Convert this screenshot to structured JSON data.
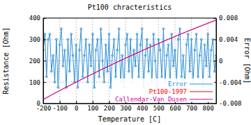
{
  "chart_data": {
    "type": "line",
    "title": "Pt100 chracteristics",
    "x_label": "Temperature [C]",
    "y_label": "Resistance [Ohm]",
    "y2_label": "Error [Ohm]",
    "xlim": [
      -200,
      850
    ],
    "xticks": [
      -200,
      -100,
      0,
      100,
      200,
      300,
      400,
      500,
      600,
      700,
      800
    ],
    "ylim": [
      0,
      400
    ],
    "yticks": [
      0,
      100,
      200,
      300,
      400
    ],
    "y2lim": [
      -0.008,
      0.008
    ],
    "y2ticks": [
      -0.008,
      -0.004,
      0,
      0.004,
      0.008
    ],
    "grid": true,
    "legend": "lower right",
    "series": [
      {
        "name": "Error",
        "color": "#2a8fd8",
        "axis": "y2",
        "marker": "circle",
        "line_style": "solid",
        "x": [
          -200,
          -190,
          -180,
          -170,
          -160,
          -150,
          -140,
          -130,
          -120,
          -110,
          -100,
          -90,
          -80,
          -70,
          -60,
          -50,
          -40,
          -30,
          -20,
          -10,
          0,
          10,
          20,
          30,
          40,
          50,
          60,
          70,
          80,
          90,
          100,
          110,
          120,
          130,
          140,
          150,
          160,
          170,
          180,
          190,
          200,
          210,
          220,
          230,
          240,
          250,
          260,
          270,
          280,
          290,
          300,
          310,
          320,
          330,
          340,
          350,
          360,
          370,
          380,
          390,
          400,
          410,
          420,
          430,
          440,
          450,
          460,
          470,
          480,
          490,
          500,
          510,
          520,
          530,
          540,
          550,
          560,
          570,
          580,
          590,
          600,
          610,
          620,
          630,
          640,
          650,
          660,
          670,
          680,
          690,
          700,
          710,
          720,
          730,
          740,
          750,
          760,
          770,
          780,
          790,
          800,
          810,
          820,
          830,
          840,
          850
        ],
        "values": [
          0.002,
          0.005,
          -0.003,
          0.004,
          0.005,
          -0.002,
          0.001,
          -0.004,
          0.004,
          -0.005,
          0.003,
          0.006,
          -0.001,
          0.002,
          -0.005,
          0.004,
          -0.002,
          0.005,
          0.001,
          -0.004,
          0.003,
          -0.005,
          0.002,
          0.006,
          -0.003,
          0.001,
          0.004,
          -0.004,
          0.003,
          -0.001,
          0.005,
          -0.005,
          0.002,
          0.004,
          -0.003,
          0.006,
          0,
          -0.004,
          0.003,
          -0.002,
          0.005,
          -0.005,
          0.001,
          0.004,
          -0.003,
          0.002,
          0.006,
          -0.004,
          0.001,
          -0.005,
          0.003,
          0.005,
          -0.002,
          0.004,
          -0.004,
          0.002,
          -0.001,
          0.005,
          -0.003,
          0.003,
          0.006,
          -0.005,
          0.001,
          0.004,
          -0.002,
          0.003,
          -0.004,
          0.005,
          0,
          -0.005,
          0.004,
          0.002,
          -0.003,
          0.006,
          -0.004,
          0.001,
          0.003,
          -0.005,
          0.005,
          -0.001,
          0.002,
          -0.004,
          0.004,
          0.006,
          -0.003,
          0.001,
          -0.005,
          0.003,
          0.005,
          -0.002,
          0.004,
          -0.004,
          0.002,
          0.005,
          -0.003,
          0.001,
          0.004,
          -0.005,
          0.003,
          -0.001,
          0.005,
          -0.003,
          0.002,
          0.004,
          -0.002,
          0.001
        ]
      },
      {
        "name": "Pt100-1997",
        "color": "#ff0000",
        "line_style": "solid",
        "x": [
          -200,
          -150,
          -100,
          -50,
          0,
          50,
          100,
          150,
          200,
          250,
          300,
          350,
          400,
          450,
          500,
          550,
          600,
          650,
          700,
          750,
          800,
          850
        ],
        "values": [
          18.52,
          39.72,
          60.26,
          80.31,
          100,
          119.4,
          138.51,
          157.33,
          175.86,
          194.1,
          212.05,
          229.72,
          247.09,
          264.18,
          280.98,
          297.49,
          313.71,
          329.64,
          345.28,
          360.64,
          375.7,
          390.48
        ]
      },
      {
        "name": "Callendar-Van Dusen",
        "color": "#cc00aa",
        "line_style": "solid",
        "x": [
          -200,
          -150,
          -100,
          -50,
          0,
          50,
          100,
          150,
          200,
          250,
          300,
          350,
          400,
          450,
          500,
          550,
          600,
          650,
          700,
          750,
          800,
          850
        ],
        "values": [
          18.52,
          39.72,
          60.26,
          80.31,
          100,
          119.4,
          138.51,
          157.33,
          175.86,
          194.1,
          212.05,
          229.72,
          247.09,
          264.18,
          280.98,
          297.49,
          313.71,
          329.64,
          345.28,
          360.64,
          375.7,
          390.48
        ]
      }
    ]
  }
}
